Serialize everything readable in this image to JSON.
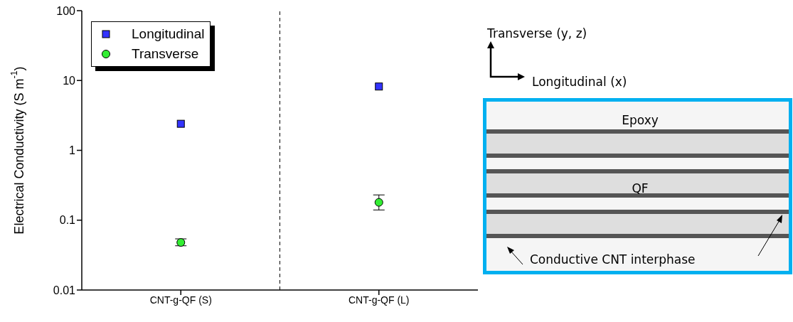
{
  "chart_data": {
    "type": "scatter",
    "ylabel": "Electrical Conductivity (S m$^{-1}$)",
    "categories": [
      "CNT-g-QF (S)",
      "CNT-g-QF (L)"
    ],
    "ylim": [
      0.01,
      100
    ],
    "yticks": [
      0.01,
      0.1,
      1,
      10,
      100
    ],
    "log": true,
    "legend": "top left",
    "series": [
      {
        "name": "Longitudinal",
        "color": "#3333ff",
        "marker": "square",
        "values": [
          2.4,
          8.2
        ]
      },
      {
        "name": "Transverse",
        "color": "#33ee33",
        "marker": "circle",
        "values": [
          0.048,
          0.18
        ],
        "errors": [
          [
            0.043,
            0.054
          ],
          [
            0.14,
            0.23
          ]
        ]
      }
    ],
    "annotations": [
      "Transverse (y, z)",
      "Longitudinal (x)",
      "Epoxy",
      "QF",
      "Conductive CNT interphase"
    ]
  }
}
